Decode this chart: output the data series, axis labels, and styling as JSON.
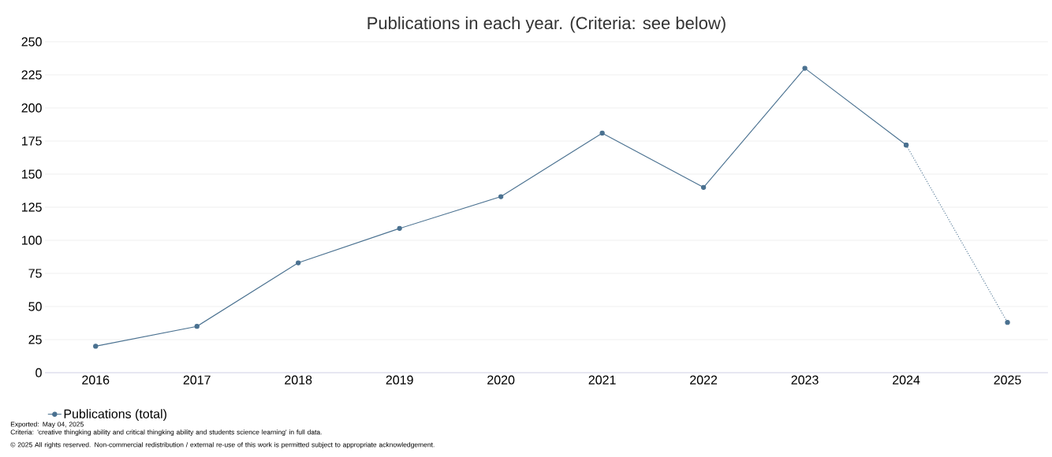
{
  "chart_data": {
    "type": "line",
    "title": "Publications in each year. (Criteria: see below)",
    "categories": [
      "2016",
      "2017",
      "2018",
      "2019",
      "2020",
      "2021",
      "2022",
      "2023",
      "2024",
      "2025"
    ],
    "series": [
      {
        "name": "Publications (total)",
        "color": "#4a7190",
        "line_style": "solid",
        "values": [
          20,
          35,
          83,
          109,
          133,
          181,
          140,
          230,
          172,
          null
        ]
      },
      {
        "color": "#4a7190",
        "line_style": "dotted",
        "values": [
          null,
          null,
          null,
          null,
          null,
          null,
          null,
          null,
          172,
          38
        ]
      }
    ],
    "ylim": [
      0,
      250
    ],
    "yticks": [
      0,
      25,
      50,
      75,
      100,
      125,
      150,
      175,
      200,
      225,
      250
    ],
    "grid": "y",
    "legend": "bottom left",
    "marker": "circle",
    "annotations": [
      "Exported: May 04, 2025",
      "Criteria: 'creative thingking ability and critical thingking ability and students science learning' in full data.",
      "© 2025 All rights reserved. Non-commercial redistribution / external re-use of this work is permitted subject to appropriate acknowledgement."
    ]
  }
}
